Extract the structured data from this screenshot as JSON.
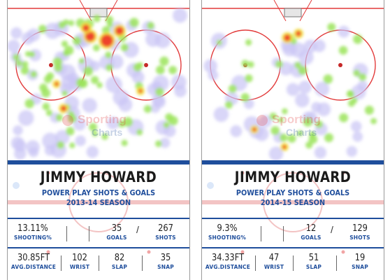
{
  "colors": {
    "accent": "#1f4e9c",
    "rink_red": "#e23a3a",
    "border": "#9a9a9a"
  },
  "cards": [
    {
      "player": "JIMMY HOWARD",
      "subtitle_line1": "POWER PLAY SHOTS & GOALS",
      "subtitle_line2": "2013-14 SEASON",
      "watermark_line1": "Sporting",
      "watermark_line2": "Charts",
      "shooting_pct": "13.11%",
      "shooting_label": "SHOOTING%",
      "goals": "35",
      "goals_label": "GOALS",
      "shots": "267",
      "shots_label": "SHOTS",
      "avg_distance": "30.85FT",
      "avg_distance_label": "AVG.DISTANCE",
      "wrist": "102",
      "wrist_label": "WRIST",
      "slap": "82",
      "slap_label": "SLAP",
      "snap": "35",
      "snap_label": "SNAP"
    },
    {
      "player": "JIMMY HOWARD",
      "subtitle_line1": "POWER PLAY SHOTS & GOALS",
      "subtitle_line2": "2014-15 SEASON",
      "watermark_line1": "Sporting",
      "watermark_line2": "Charts",
      "shooting_pct": "9.3%",
      "shooting_label": "SHOOTING%",
      "goals": "12",
      "goals_label": "GOALS",
      "shots": "129",
      "shots_label": "SHOTS",
      "avg_distance": "34.33FT",
      "avg_distance_label": "AVG.DISTANCE",
      "wrist": "47",
      "wrist_label": "WRIST",
      "slap": "51",
      "slap_label": "SLAP",
      "snap": "19",
      "snap_label": "SNAP"
    }
  ]
}
